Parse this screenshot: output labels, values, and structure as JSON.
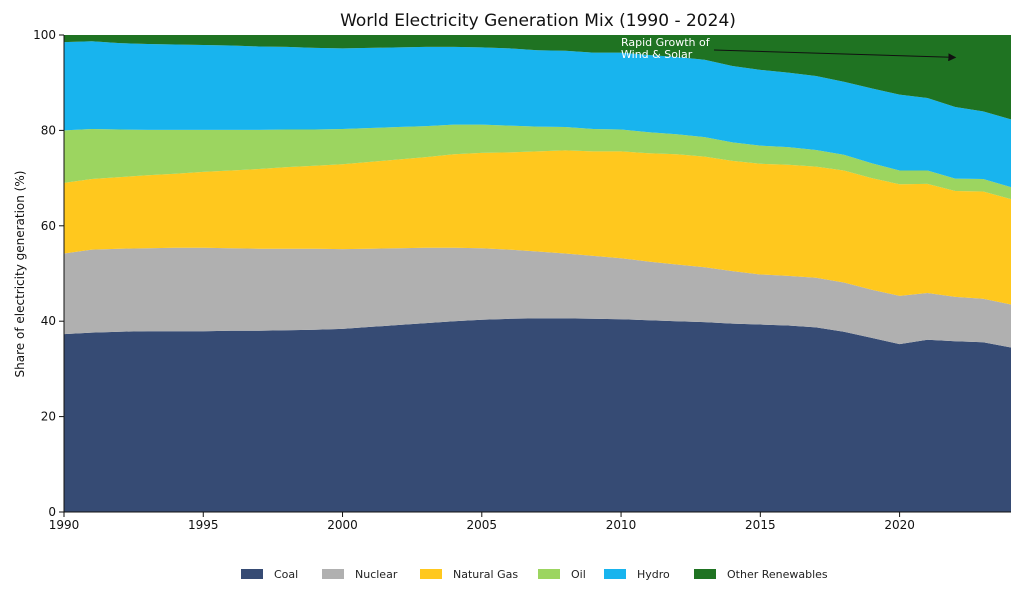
{
  "chart_data": {
    "type": "area",
    "title": "World Electricity Generation Mix (1990 - 2024)",
    "xlabel": "",
    "ylabel": "Share of electricity generation (%)",
    "xlim": [
      1990,
      2024
    ],
    "ylim": [
      0,
      100
    ],
    "x_ticks": [
      1990,
      1995,
      2000,
      2005,
      2010,
      2015,
      2020
    ],
    "y_ticks": [
      0,
      20,
      40,
      60,
      80,
      100
    ],
    "stacked": true,
    "grid": false,
    "legend_position": "bottom",
    "x": [
      1990,
      1991,
      1992,
      1993,
      1994,
      1995,
      1996,
      1997,
      1998,
      1999,
      2000,
      2001,
      2002,
      2003,
      2004,
      2005,
      2006,
      2007,
      2008,
      2009,
      2010,
      2011,
      2012,
      2013,
      2014,
      2015,
      2016,
      2017,
      2018,
      2019,
      2020,
      2021,
      2022,
      2023,
      2024
    ],
    "series": [
      {
        "name": "Coal",
        "color": "#364b74",
        "values": [
          37.3,
          37.6,
          37.8,
          37.9,
          37.9,
          37.9,
          38.0,
          38.0,
          38.1,
          38.2,
          38.4,
          38.8,
          39.2,
          39.6,
          40.0,
          40.3,
          40.5,
          40.6,
          40.6,
          40.5,
          40.4,
          40.2,
          40.0,
          39.8,
          39.5,
          39.3,
          39.1,
          38.7,
          37.8,
          36.5,
          35.2,
          36.1,
          35.8,
          35.6,
          34.5
        ]
      },
      {
        "name": "Nuclear",
        "color": "#b0b0b0",
        "values": [
          16.9,
          17.4,
          17.4,
          17.4,
          17.5,
          17.5,
          17.3,
          17.2,
          17.1,
          17.0,
          16.7,
          16.4,
          16.1,
          15.8,
          15.4,
          15.0,
          14.5,
          14.0,
          13.6,
          13.2,
          12.8,
          12.3,
          11.9,
          11.5,
          11.0,
          10.5,
          10.4,
          10.4,
          10.3,
          10.1,
          10.1,
          9.8,
          9.3,
          9.1,
          9.0
        ]
      },
      {
        "name": "Natural Gas",
        "color": "#ffc81e",
        "values": [
          14.8,
          14.8,
          15.0,
          15.3,
          15.5,
          15.9,
          16.3,
          16.7,
          17.1,
          17.4,
          17.8,
          18.2,
          18.6,
          19.0,
          19.6,
          20.0,
          20.4,
          21.0,
          21.6,
          21.9,
          22.4,
          22.7,
          23.1,
          23.2,
          23.1,
          23.2,
          23.3,
          23.3,
          23.5,
          23.4,
          23.4,
          22.9,
          22.2,
          22.5,
          22.1
        ]
      },
      {
        "name": "Oil",
        "color": "#9cd560",
        "values": [
          11.0,
          10.5,
          10.0,
          9.5,
          9.2,
          8.8,
          8.5,
          8.2,
          7.9,
          7.6,
          7.4,
          7.1,
          6.8,
          6.5,
          6.2,
          5.9,
          5.6,
          5.2,
          4.9,
          4.7,
          4.6,
          4.4,
          4.2,
          4.1,
          3.9,
          3.8,
          3.7,
          3.5,
          3.3,
          3.1,
          2.9,
          2.8,
          2.6,
          2.6,
          2.5
        ]
      },
      {
        "name": "Hydro",
        "color": "#18b4ee",
        "values": [
          18.5,
          18.4,
          18.1,
          18.0,
          17.9,
          17.8,
          17.7,
          17.5,
          17.3,
          17.1,
          16.9,
          16.8,
          16.7,
          16.6,
          16.3,
          16.2,
          16.2,
          16.0,
          16.0,
          16.0,
          16.1,
          16.2,
          16.2,
          16.2,
          16.0,
          15.9,
          15.6,
          15.5,
          15.3,
          15.7,
          15.9,
          15.2,
          15.0,
          14.2,
          14.2
        ]
      },
      {
        "name": "Other Renewables",
        "color": "#1f7322",
        "values": [
          1.5,
          1.3,
          1.7,
          1.9,
          2.0,
          2.1,
          2.2,
          2.4,
          2.5,
          2.7,
          2.8,
          2.7,
          2.6,
          2.5,
          2.5,
          2.6,
          2.8,
          3.2,
          3.3,
          3.7,
          3.7,
          4.2,
          4.6,
          5.2,
          6.5,
          7.3,
          7.9,
          8.6,
          9.8,
          11.2,
          12.5,
          13.2,
          15.1,
          16.0,
          17.7
        ]
      }
    ],
    "annotations": [
      {
        "text_lines": [
          "Rapid Growth of",
          "Wind & Solar"
        ],
        "x": 2022,
        "y": 95.3,
        "arrow": true
      }
    ]
  }
}
